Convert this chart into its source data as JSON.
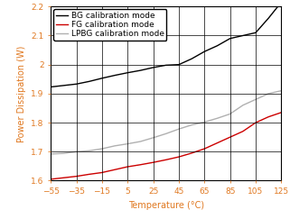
{
  "title": "",
  "xlabel": "Temperature (°C)",
  "ylabel": "Power Dissipation (W)",
  "xlim": [
    -55,
    125
  ],
  "ylim": [
    1.6,
    2.2
  ],
  "xticks": [
    -55,
    -35,
    -15,
    5,
    25,
    45,
    65,
    85,
    105,
    125
  ],
  "yticks": [
    1.6,
    1.7,
    1.8,
    1.9,
    2.0,
    2.1,
    2.2
  ],
  "bg_color": "#ffffff",
  "grid_color": "#000000",
  "lines": [
    {
      "label": "BG calibration mode",
      "color": "#000000",
      "x": [
        -55,
        -45,
        -35,
        -25,
        -15,
        -5,
        5,
        15,
        25,
        35,
        45,
        55,
        65,
        75,
        85,
        95,
        105,
        115,
        125
      ],
      "y": [
        1.923,
        1.928,
        1.933,
        1.942,
        1.953,
        1.963,
        1.972,
        1.98,
        1.99,
        1.998,
        2.0,
        2.02,
        2.045,
        2.065,
        2.09,
        2.1,
        2.11,
        2.16,
        2.215
      ]
    },
    {
      "label": "FG calibration mode",
      "color": "#cc0000",
      "x": [
        -55,
        -45,
        -35,
        -25,
        -15,
        -5,
        5,
        15,
        25,
        35,
        45,
        55,
        65,
        75,
        85,
        95,
        105,
        115,
        125
      ],
      "y": [
        1.605,
        1.61,
        1.615,
        1.622,
        1.628,
        1.638,
        1.648,
        1.655,
        1.663,
        1.672,
        1.682,
        1.695,
        1.71,
        1.73,
        1.75,
        1.77,
        1.8,
        1.82,
        1.835
      ]
    },
    {
      "label": "LPBG calibration mode",
      "color": "#b0b0b0",
      "x": [
        -55,
        -45,
        -35,
        -25,
        -15,
        -5,
        5,
        15,
        25,
        35,
        45,
        55,
        65,
        75,
        85,
        95,
        105,
        115,
        125
      ],
      "y": [
        1.692,
        1.694,
        1.7,
        1.703,
        1.71,
        1.72,
        1.727,
        1.735,
        1.748,
        1.762,
        1.778,
        1.792,
        1.802,
        1.815,
        1.83,
        1.86,
        1.88,
        1.9,
        1.91
      ]
    }
  ],
  "legend_loc": "upper left",
  "label_color": "#e07820",
  "tick_color": "#e07820",
  "axis_color": "#000000",
  "fontsize_label": 7.0,
  "fontsize_tick": 6.5,
  "fontsize_legend": 6.5,
  "linewidth": 1.0
}
